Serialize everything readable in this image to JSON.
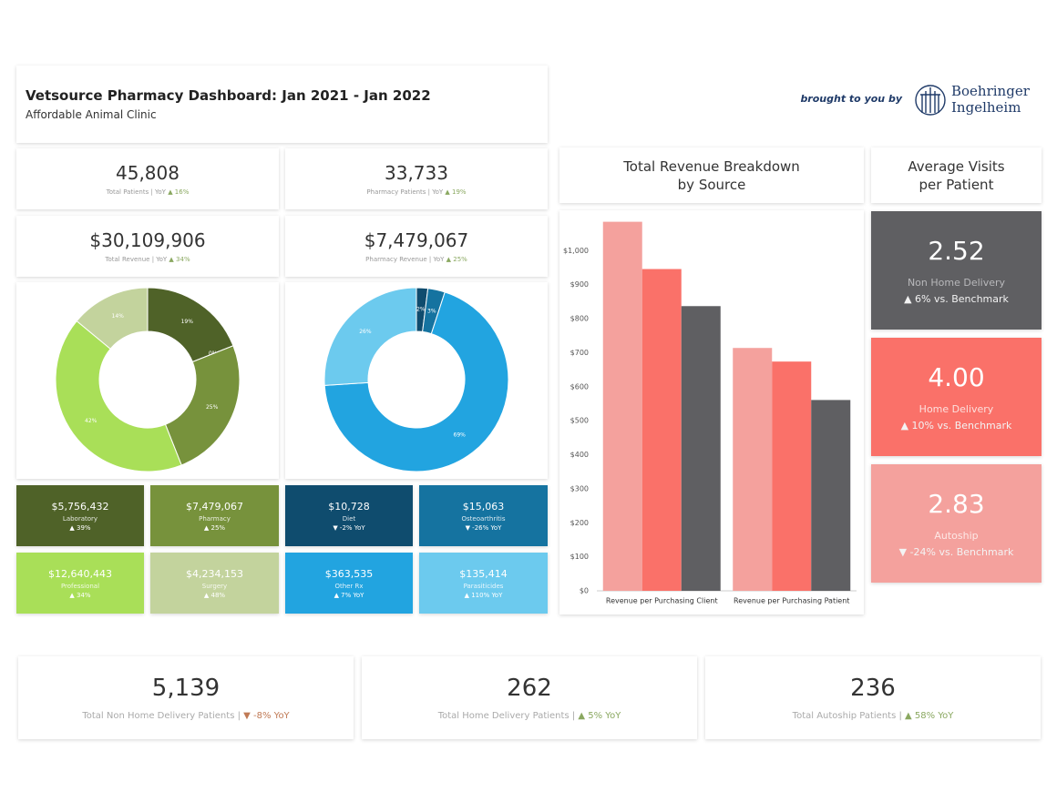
{
  "header": {
    "title": "Vetsource Pharmacy Dashboard: Jan 2021 - Jan 2022",
    "subtitle": "Affordable Animal Clinic"
  },
  "sponsor": {
    "text": "brought to you by",
    "logo": [
      "Boehringer",
      "Ingelheim"
    ]
  },
  "kpis": [
    {
      "value": "45,808",
      "label": "Total Patients | YoY",
      "change": "▲ 16%"
    },
    {
      "value": "33,733",
      "label": "Pharmacy Patients | YoY",
      "change": "▲ 19%"
    },
    {
      "value": "$30,109,906",
      "label": "Total Revenue | YoY",
      "change": "▲ 34%"
    },
    {
      "value": "$7,479,067",
      "label": "Pharmacy Revenue | YoY",
      "change": "▲ 25%"
    }
  ],
  "chart_data": [
    {
      "type": "donut",
      "values": [
        19,
        0,
        25,
        42,
        14
      ],
      "value_labels": [
        "19%",
        "0%",
        "25%",
        "42%",
        "14%"
      ],
      "colors": [
        "#4f6228",
        "#77923c",
        "#77923c",
        "#a9df58",
        "#c3d39d"
      ]
    },
    {
      "type": "donut",
      "values": [
        2,
        3,
        69,
        26
      ],
      "value_labels": [
        "2%",
        "3%",
        "69%",
        "26%"
      ],
      "colors": [
        "#0f4c6e",
        "#1573a0",
        "#22a4e0",
        "#6ccaee"
      ]
    },
    {
      "type": "bar",
      "title": "Total Revenue Breakdown by Source",
      "categories": [
        "Revenue per Purchasing Client",
        "Revenue per Purchasing Patient"
      ],
      "series": [
        {
          "color": "#f4a19d",
          "values": [
            1085,
            714
          ]
        },
        {
          "color": "#fa7169",
          "values": [
            946,
            674
          ]
        },
        {
          "color": "#5f5f62",
          "values": [
            837,
            561
          ]
        }
      ],
      "ylim": [
        0,
        1100
      ],
      "yticks": [
        {
          "value": 0,
          "label": "$0"
        },
        {
          "value": 100,
          "label": "$100"
        },
        {
          "value": 200,
          "label": "$200"
        },
        {
          "value": 300,
          "label": "$300"
        },
        {
          "value": 400,
          "label": "$400"
        },
        {
          "value": 500,
          "label": "$500"
        },
        {
          "value": 600,
          "label": "$600"
        },
        {
          "value": 700,
          "label": "$700"
        },
        {
          "value": 800,
          "label": "$800"
        },
        {
          "value": 900,
          "label": "$900"
        },
        {
          "value": 1000,
          "label": "$1,000"
        }
      ]
    }
  ],
  "segment_cards": [
    {
      "value": "$5,756,432",
      "name": "Laboratory",
      "change": "▲ 39%"
    },
    {
      "value": "$7,479,067",
      "name": "Pharmacy",
      "change": "▲ 25%"
    },
    {
      "value": "$10,728",
      "name": "Diet",
      "change": "▼ -2% YoY"
    },
    {
      "value": "$15,063",
      "name": "Osteoarthritis",
      "change": "▼ -26% YoY"
    },
    {
      "value": "$12,640,443",
      "name": "Professional",
      "change": "▲ 34%"
    },
    {
      "value": "$4,234,153",
      "name": "Surgery",
      "change": "▲ 48%"
    },
    {
      "value": "$363,535",
      "name": "Other Rx",
      "change": "▲ 7% YoY"
    },
    {
      "value": "$135,414",
      "name": "Parasiticides",
      "change": "▲ 110% YoY"
    }
  ],
  "visits": {
    "title": "Average Visits per Patient",
    "cards": [
      {
        "value": "2.52",
        "label": "Non Home Delivery",
        "change": "▲ 6% vs. Benchmark"
      },
      {
        "value": "4.00",
        "label": "Home Delivery",
        "change": "▲ 10% vs. Benchmark"
      },
      {
        "value": "2.83",
        "label": "Autoship",
        "change": "▼ -24% vs. Benchmark"
      }
    ]
  },
  "totals": [
    {
      "value": "5,139",
      "label": "Total Non Home Delivery Patients |",
      "change": "▼ -8% YoY"
    },
    {
      "value": "262",
      "label": "Total Home Delivery Patients |",
      "change": "▲ 5% YoY"
    },
    {
      "value": "236",
      "label": "Total Autoship Patients |",
      "change": "▲ 58% YoY"
    }
  ]
}
